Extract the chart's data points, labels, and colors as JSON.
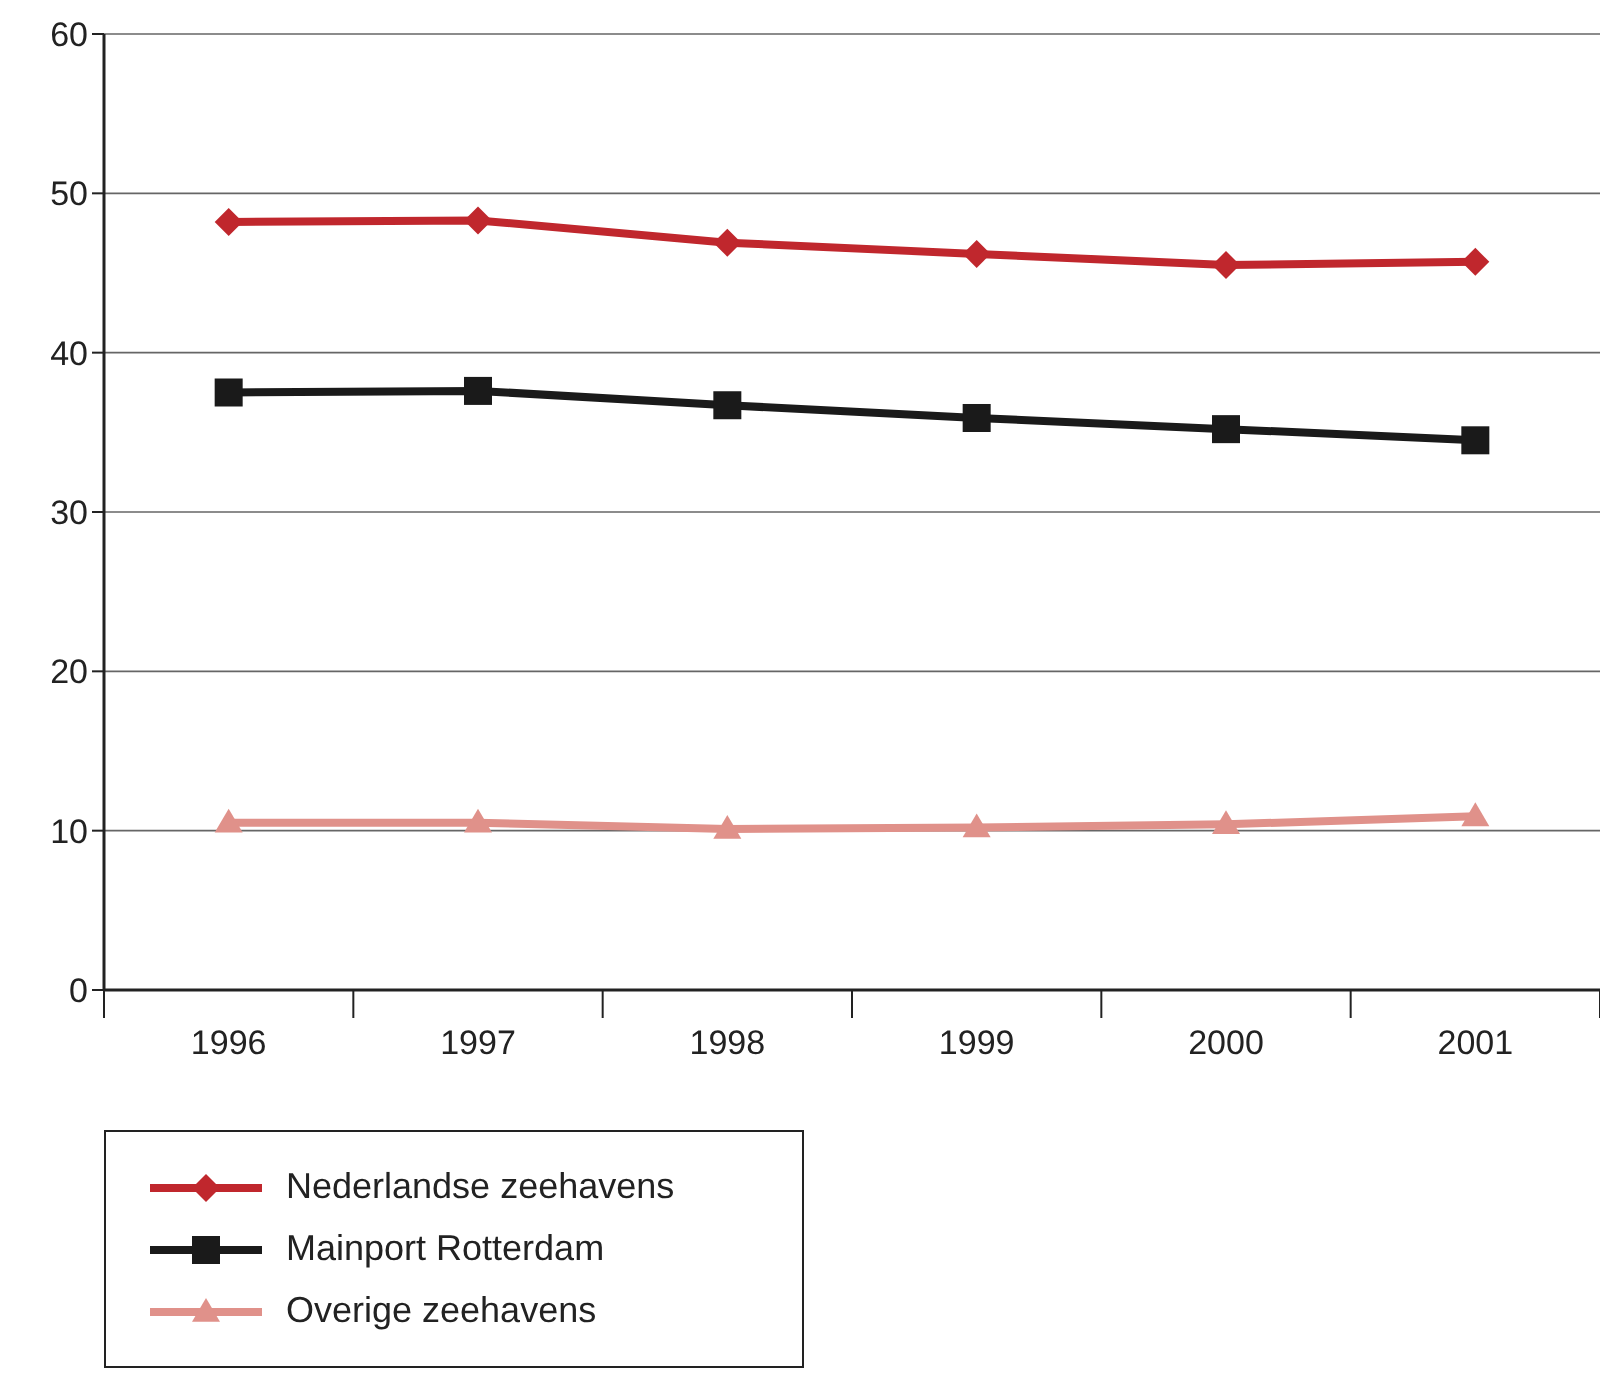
{
  "chart_data": {
    "type": "line",
    "categories": [
      "1996",
      "1997",
      "1998",
      "1999",
      "2000",
      "2001"
    ],
    "series": [
      {
        "name": "Nederlandse zeehavens",
        "color": "#c0272d",
        "marker": "diamond",
        "values": [
          48.2,
          48.3,
          46.9,
          46.2,
          45.5,
          45.7
        ]
      },
      {
        "name": "Mainport Rotterdam",
        "color": "#1a1a1a",
        "marker": "square",
        "values": [
          37.5,
          37.6,
          36.7,
          35.9,
          35.2,
          34.5
        ]
      },
      {
        "name": "Overige zeehavens",
        "color": "#e0918a",
        "marker": "triangle",
        "values": [
          10.5,
          10.5,
          10.1,
          10.2,
          10.4,
          10.9
        ]
      }
    ],
    "ylim": [
      0,
      60
    ],
    "yticks": [
      0,
      10,
      20,
      30,
      40,
      50,
      60
    ],
    "grid": "y",
    "legend": "bottom left",
    "line_style": "solid"
  }
}
